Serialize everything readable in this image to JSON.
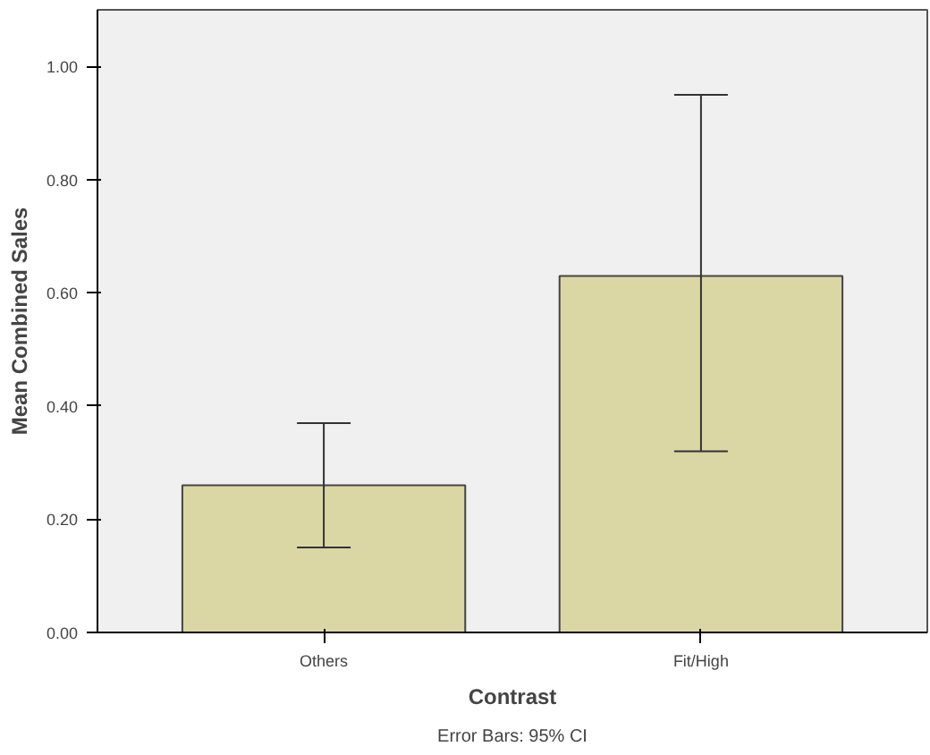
{
  "chart_data": {
    "type": "bar",
    "xlabel": "Contrast",
    "ylabel": "Mean Combined Sales",
    "categories": [
      "Others",
      "Fit/High"
    ],
    "values": [
      0.26,
      0.63
    ],
    "color": "#dad7a5",
    "errors": [
      [
        0.15,
        0.37
      ],
      [
        0.32,
        0.95
      ]
    ],
    "ylim": [
      0,
      1.1
    ],
    "yticks": [
      {
        "value": 0,
        "label": "0.00"
      },
      {
        "value": 0.2,
        "label": "0.20"
      },
      {
        "value": 0.4,
        "label": "0.40"
      },
      {
        "value": 0.6,
        "label": "0.60"
      },
      {
        "value": 0.8,
        "label": "0.80"
      },
      {
        "value": 1.0,
        "label": "1.00"
      }
    ],
    "grid": false,
    "annotations": [
      "Error Bars: 95% CI"
    ]
  }
}
